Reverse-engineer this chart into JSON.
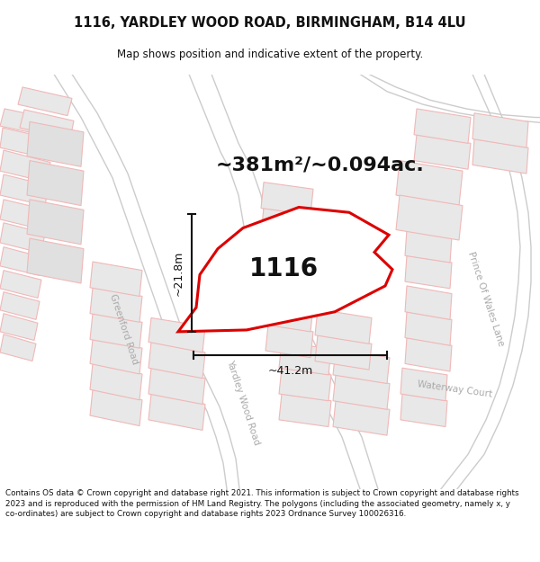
{
  "title_line1": "1116, YARDLEY WOOD ROAD, BIRMINGHAM, B14 4LU",
  "title_line2": "Map shows position and indicative extent of the property.",
  "area_text": "~381m²/~0.094ac.",
  "property_label": "1116",
  "dim_vertical": "~21.8m",
  "dim_horizontal": "~41.2m",
  "footer_text": "Contains OS data © Crown copyright and database right 2021. This information is subject to Crown copyright and database rights 2023 and is reproduced with the permission of HM Land Registry. The polygons (including the associated geometry, namely x, y co-ordinates) are subject to Crown copyright and database rights 2023 Ordnance Survey 100026316.",
  "background_color": "#ffffff",
  "map_bg": "#ffffff",
  "block_fill": "#e8e8e8",
  "block_edge": "#f0b8b8",
  "road_line_color": "#f0a0a0",
  "property_outline_color": "#dd0000",
  "property_fill": "#ffffff",
  "dim_line_color": "#111111",
  "road_label_color": "#aaaaaa",
  "title_color": "#111111",
  "footer_color": "#111111"
}
